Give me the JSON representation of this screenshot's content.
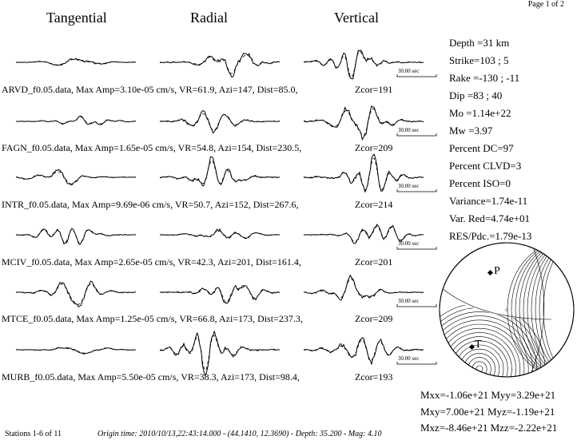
{
  "page": {
    "page_label": "Page 1 of 2"
  },
  "columns": [
    "Tangential",
    "Radial",
    "Vertical"
  ],
  "scale_label": "30.00 sec",
  "stations": [
    {
      "label": "ARVD_f0.05.data,  Max Amp=3.10e-05 cm/s,  VR=61.9, Azi=147, Dist=85.0,",
      "zcor": "Zcor=191"
    },
    {
      "label": "FAGN_f0.05.data,  Max Amp=1.65e-05 cm/s,  VR=54.8, Azi=154, Dist=230.5,",
      "zcor": "Zcor=209"
    },
    {
      "label": "INTR_f0.05.data,  Max Amp=9.69e-06 cm/s,  VR=50.7, Azi=152, Dist=267.6,",
      "zcor": "Zcor=214"
    },
    {
      "label": "MCIV_f0.05.data,  Max Amp=2.65e-05 cm/s,  VR=42.3, Azi=201, Dist=161.4,",
      "zcor": "Zcor=201"
    },
    {
      "label": "MTCE_f0.05.data,  Max Amp=1.25e-05 cm/s,  VR=66.8, Azi=173, Dist=237.3,",
      "zcor": "Zcor=209"
    },
    {
      "label": "MURB_f0.05.data,  Max Amp=5.50e-05 cm/s,  VR=38.3, Azi=173, Dist=98.4,",
      "zcor": "Zcor=193"
    }
  ],
  "solution": {
    "depth": "Depth =31 km",
    "strike": "Strike=103 ; 5",
    "rake": "Rake  =-130 ; -11",
    "dip": "Dip   =83 ; 40",
    "mo": "Mo    =1.14e+22",
    "mw": "Mw    =3.97",
    "pdc": "Percent DC=97",
    "pclvd": "Percent CLVD=3",
    "piso": "Percent ISO=0",
    "variance": "Variance=1.74e-11",
    "varred": "Var. Red=4.74e+01",
    "respdc": "RES/Pdc.=1.79e-13"
  },
  "beachball": {
    "p_label": "P",
    "t_label": "T"
  },
  "moment_tensor": {
    "row1": "Mxx=-1.06e+21 Myy=3.29e+21",
    "row2": "Mxy=7.00e+21 Myz=-1.19e+21",
    "row3": "Mxz=-8.46e+21 Mzz=-2.22e+21"
  },
  "footer": {
    "stations": "Stations 1-6 of 11",
    "origin": "Origin time: 2010/10/13,22:43:14.000 - (44.1410, 12.3690) - Depth: 35.200 - Mag: 4.10"
  }
}
